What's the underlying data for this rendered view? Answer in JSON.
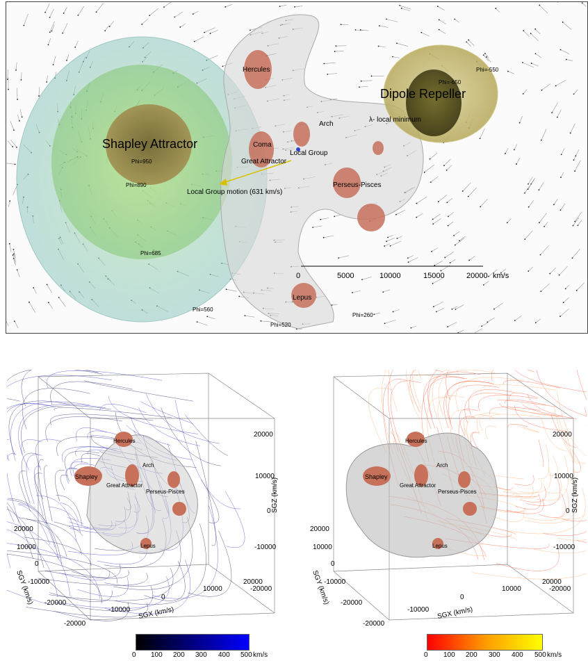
{
  "top_panel": {
    "labels": {
      "shapley": "Shapley Attractor",
      "dipole": "Dipole Repeller",
      "hercules": "Hercules",
      "coma": "Coma",
      "arch": "Arch",
      "local_group": "Local Group",
      "great_attractor": "Great Attractor",
      "perseus": "Perseus-Pisces",
      "lepus": "Lepus",
      "local_min": "λ- local minimum",
      "lg_motion": "Local Group motion (631 km/s)"
    },
    "phi_labels": [
      "Phi=-550",
      "Phi=-650",
      "Phi=950",
      "Phi=890",
      "Phi=685",
      "Phi=560",
      "Phi=520",
      "Phi=260"
    ],
    "scale_bar": {
      "ticks": [
        "0",
        "5000",
        "10000",
        "15000",
        "20000"
      ],
      "unit": "km/s"
    }
  },
  "bottom_left": {
    "labels": {
      "hercules": "Hercules",
      "shapley": "Shapley",
      "arch": "Arch",
      "great_attractor": "Great Attractor",
      "perseus": "Perseus-Pisces",
      "lepus": "Lepus"
    },
    "axes": {
      "sgx": "SGX (km/s)",
      "sgy": "SGY (km/s)",
      "sgz": "SGZ (km/s)"
    },
    "z_ticks": [
      "20000",
      "10000",
      "0",
      "-10000",
      "-20000"
    ],
    "x_ticks": [
      "-20000",
      "-10000",
      "0",
      "10000",
      "20000"
    ],
    "y_ticks": [
      "20000",
      "10000",
      "0",
      "-10000",
      "-20000"
    ]
  },
  "bottom_right": {
    "labels": {
      "hercules": "Hercules",
      "shapley": "Shapley",
      "arch": "Arch",
      "great_attractor": "Great Attractor",
      "perseus": "Perseus-Pisces",
      "lepus": "Lepus"
    },
    "axes": {
      "sgx": "SGX (km/s)",
      "sgy": "SGY (km/s)",
      "sgz": "SGZ (km/s)"
    },
    "z_ticks": [
      "20000",
      "10000",
      "0",
      "-10000",
      "-20000"
    ],
    "x_ticks": [
      "-20000",
      "-10000",
      "0",
      "10000",
      "20000"
    ],
    "y_ticks": [
      "20000",
      "10000",
      "0",
      "-10000",
      "-20000"
    ]
  },
  "colorbars": {
    "left": {
      "ticks": [
        "0",
        "100",
        "200",
        "300",
        "400",
        "500"
      ],
      "unit": "km/s",
      "colors": [
        "#000000",
        "#0000ff"
      ]
    },
    "right": {
      "ticks": [
        "0",
        "100",
        "200",
        "300",
        "400",
        "500"
      ],
      "unit": "km/s",
      "colors": [
        "#ff0000",
        "#ffff00"
      ]
    }
  }
}
